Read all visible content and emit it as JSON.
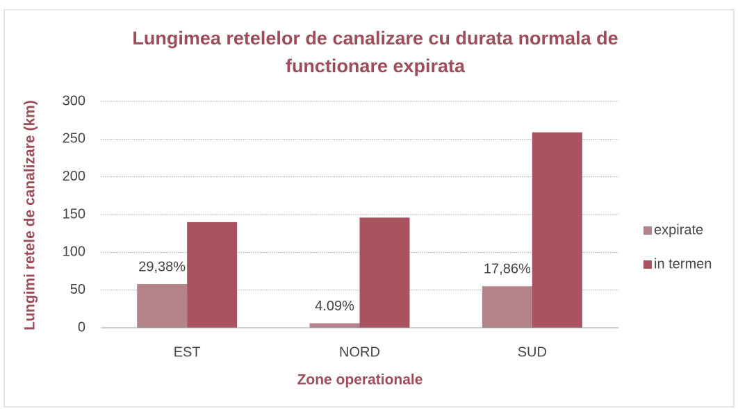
{
  "chart_data": {
    "type": "bar",
    "title": "Lungimea retelelor de canalizare cu durata normala de functionare expirata",
    "x_label": "Zone operationale",
    "y_label": "Lungimi retele de canalizare (km)",
    "categories": [
      "EST",
      "NORD",
      "SUD"
    ],
    "series": [
      {
        "name": "expirate",
        "color": "#b5848a",
        "values": [
          58,
          6,
          55
        ]
      },
      {
        "name": "in termen",
        "color": "#a9535f",
        "values": [
          140,
          146,
          259
        ]
      }
    ],
    "annotations": [
      "29,38%",
      "4.09%",
      "17,86%"
    ],
    "ylim": [
      0,
      300
    ],
    "yticks": [
      0,
      50,
      100,
      150,
      200,
      250,
      300
    ],
    "grid": true,
    "legend": "right"
  }
}
